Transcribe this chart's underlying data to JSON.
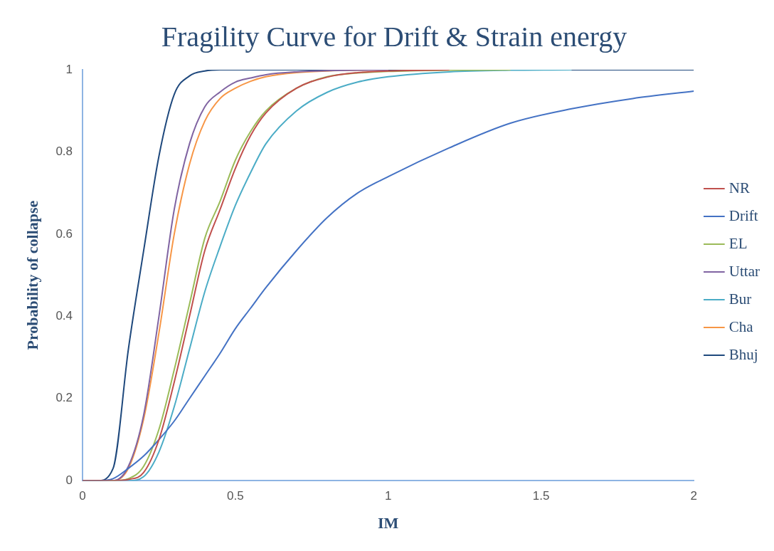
{
  "chart_data": {
    "type": "line",
    "title": "Fragility Curve for Drift & Strain energy",
    "xlabel": "IM",
    "ylabel": "Probability of collapse",
    "x": [
      0,
      0.05,
      0.1,
      0.15,
      0.2,
      0.25,
      0.3,
      0.35,
      0.4,
      0.45,
      0.5,
      0.55,
      0.6,
      0.7,
      0.8,
      0.9,
      1,
      1.2,
      1.4,
      1.6,
      1.8,
      2
    ],
    "series": [
      {
        "name": "NR",
        "color": "#c0504d",
        "values": [
          0,
          0,
          0,
          0.003,
          0.02,
          0.1,
          0.24,
          0.4,
          0.56,
          0.66,
          0.76,
          0.84,
          0.895,
          0.955,
          0.982,
          0.993,
          0.997,
          1,
          null,
          null,
          null,
          null
        ]
      },
      {
        "name": "Drift",
        "color": "#4472c4",
        "values": [
          0,
          0,
          0.005,
          0.03,
          0.06,
          0.1,
          0.145,
          0.2,
          0.255,
          0.31,
          0.37,
          0.42,
          0.47,
          0.56,
          0.64,
          0.7,
          0.74,
          0.81,
          0.87,
          0.905,
          0.93,
          0.948
        ]
      },
      {
        "name": "EL",
        "color": "#9bbb59",
        "values": [
          0,
          0,
          0,
          0.005,
          0.035,
          0.125,
          0.27,
          0.43,
          0.59,
          0.68,
          0.78,
          0.85,
          0.9,
          0.955,
          0.983,
          0.992,
          0.996,
          0.999,
          1,
          null,
          null,
          null
        ]
      },
      {
        "name": "Uttar",
        "color": "#8064a2",
        "values": [
          0,
          0,
          0,
          0.035,
          0.16,
          0.4,
          0.66,
          0.82,
          0.91,
          0.946,
          0.97,
          0.98,
          0.988,
          0.995,
          0.998,
          0.999,
          1,
          null,
          null,
          null,
          null,
          null
        ]
      },
      {
        "name": "Bur",
        "color": "#4bacc6",
        "values": [
          0,
          0,
          0,
          0,
          0.01,
          0.07,
          0.18,
          0.32,
          0.46,
          0.57,
          0.67,
          0.75,
          0.82,
          0.9,
          0.945,
          0.97,
          0.983,
          0.995,
          0.999,
          1,
          null,
          null
        ]
      },
      {
        "name": "Cha",
        "color": "#f79646",
        "values": [
          0,
          0,
          0,
          0.03,
          0.15,
          0.36,
          0.6,
          0.77,
          0.875,
          0.93,
          0.955,
          0.972,
          0.983,
          0.993,
          0.997,
          0.999,
          1,
          null,
          null,
          null,
          null,
          null
        ]
      },
      {
        "name": "Bhuj",
        "color": "#1f497d",
        "values": [
          0,
          0,
          0.03,
          0.32,
          0.56,
          0.79,
          0.94,
          0.985,
          0.997,
          1,
          1,
          1,
          1,
          1,
          1,
          1,
          1,
          1,
          1,
          1,
          1,
          1
        ]
      }
    ],
    "xlim": [
      0,
      2
    ],
    "xticks": [
      0,
      0.5,
      1,
      1.5,
      2
    ],
    "ylim": [
      0,
      1
    ],
    "yticks": [
      0,
      0.2,
      0.4,
      0.6,
      0.8,
      1
    ],
    "grid": false,
    "legend": "right",
    "marker": "none",
    "line_style": "solid"
  }
}
